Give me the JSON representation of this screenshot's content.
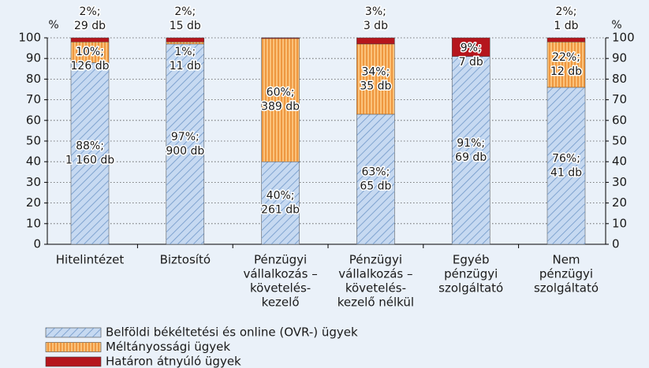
{
  "chart_data": {
    "type": "stacked_bar",
    "y_unit_left": "%",
    "y_unit_right": "%",
    "categories": [
      [
        "Hitelintézet"
      ],
      [
        "Biztosító"
      ],
      [
        "Pénzügyi",
        "vállalkozás –",
        "követelés-",
        "kezelő"
      ],
      [
        "Pénzügyi",
        "vállalkozás –",
        "követelés-",
        "kezelő nélkül"
      ],
      [
        "Egyéb",
        "pénzügyi",
        "szolgáltató"
      ],
      [
        "Nem",
        "pénzügyi",
        "szolgáltató"
      ]
    ],
    "series": [
      {
        "name": "Belföldi békéltetési és online (OVR-) ügyek",
        "color": "#c6d9f1",
        "pattern": "diagonal",
        "values": [
          88,
          97,
          40,
          63,
          91,
          76
        ],
        "value_labels": [
          "88%;",
          "97%;",
          "40%;",
          "63%;",
          "91%;",
          "76%;"
        ],
        "count_labels": [
          "1 160 db",
          "900 db",
          "261 db",
          "65 db",
          "69 db",
          "41 db"
        ]
      },
      {
        "name": "Méltányossági ügyek",
        "color": "#fbc27a",
        "pattern": "vertical",
        "values": [
          10,
          1,
          60,
          34,
          null,
          22
        ],
        "value_labels": [
          "10%;",
          "1%;",
          "60%;",
          "34%;",
          null,
          "22%;"
        ],
        "count_labels": [
          "126 db",
          "11 db",
          "389 db",
          "35 db",
          null,
          "12 db"
        ]
      },
      {
        "name": "Határon átnyúló ügyek",
        "color": "#b5161d",
        "pattern": "none",
        "values": [
          2,
          2,
          0,
          3,
          9,
          2
        ],
        "value_labels": [
          "2%;",
          "2%;",
          null,
          "3%;",
          "9%;",
          "2%;"
        ],
        "count_labels": [
          "29 db",
          "15 db",
          null,
          "3 db",
          "7 db",
          "1 db"
        ]
      }
    ],
    "ylim": [
      0,
      100
    ],
    "yticks": [
      0,
      10,
      20,
      30,
      40,
      50,
      60,
      70,
      80,
      90,
      100
    ],
    "y2lim": [
      0,
      100
    ],
    "y2ticks": [
      0,
      10,
      20,
      30,
      40,
      50,
      60,
      70,
      80,
      90,
      100
    ],
    "grid": true
  }
}
